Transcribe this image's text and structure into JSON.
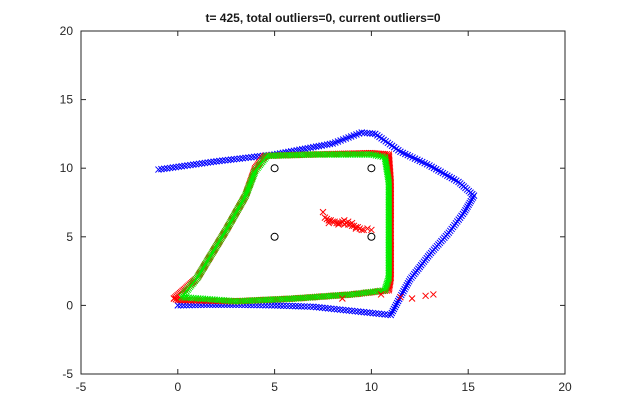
{
  "chart_data": {
    "type": "scatter",
    "title": "t= 425, total outliers=0, current outliers=0",
    "xlabel": "",
    "ylabel": "",
    "xlim": [
      -5,
      20
    ],
    "ylim": [
      -5,
      20
    ],
    "xticks": [
      -5,
      0,
      5,
      10,
      15,
      20
    ],
    "yticks": [
      -5,
      0,
      5,
      10,
      15,
      20
    ],
    "grid": false,
    "legend": null,
    "series": [
      {
        "marker": "x",
        "color": "#0000ff",
        "path": [
          [
            -1.0,
            9.9
          ],
          [
            2.0,
            10.5
          ],
          [
            5.0,
            11.0
          ],
          [
            8.0,
            11.8
          ],
          [
            9.5,
            12.6
          ],
          [
            10.2,
            12.5
          ],
          [
            11.5,
            11.2
          ],
          [
            13.0,
            10.2
          ],
          [
            14.5,
            9.0
          ],
          [
            15.3,
            8.0
          ],
          [
            14.8,
            6.8
          ],
          [
            14.0,
            5.3
          ],
          [
            13.0,
            3.7
          ],
          [
            12.0,
            1.9
          ],
          [
            11.6,
            0.9
          ],
          [
            11.0,
            -0.7
          ],
          [
            9.0,
            -0.4
          ],
          [
            7.0,
            -0.1
          ],
          [
            5.0,
            0.0
          ],
          [
            3.0,
            0.05
          ],
          [
            1.5,
            0.05
          ],
          [
            0.0,
            0.0
          ]
        ],
        "spacing": 0.15
      },
      {
        "marker": "x",
        "color": "#ff0000",
        "path": [
          [
            -0.2,
            0.5
          ],
          [
            1.0,
            2.0
          ],
          [
            2.5,
            5.5
          ],
          [
            3.5,
            8.0
          ],
          [
            4.0,
            10.0
          ],
          [
            4.5,
            10.9
          ],
          [
            7.0,
            11.0
          ],
          [
            10.0,
            11.1
          ],
          [
            10.9,
            11.0
          ],
          [
            11.0,
            9.0
          ],
          [
            11.0,
            5.0
          ],
          [
            11.0,
            2.0
          ],
          [
            10.9,
            1.1
          ],
          [
            9.0,
            0.8
          ],
          [
            6.0,
            0.5
          ],
          [
            3.0,
            0.3
          ],
          [
            0.0,
            0.4
          ],
          [
            -0.2,
            0.5
          ]
        ],
        "spacing": 0.1
      },
      {
        "marker": "x",
        "color": "#00ee00",
        "path": [
          [
            0.2,
            0.6
          ],
          [
            1.0,
            2.0
          ],
          [
            2.5,
            5.5
          ],
          [
            3.5,
            8.0
          ],
          [
            4.0,
            9.8
          ],
          [
            4.6,
            10.9
          ],
          [
            7.0,
            11.0
          ],
          [
            10.0,
            11.0
          ],
          [
            10.7,
            10.8
          ],
          [
            10.9,
            9.0
          ],
          [
            10.9,
            5.0
          ],
          [
            10.9,
            2.0
          ],
          [
            10.7,
            1.1
          ],
          [
            9.0,
            0.8
          ],
          [
            6.0,
            0.5
          ],
          [
            3.0,
            0.3
          ],
          [
            0.2,
            0.6
          ]
        ],
        "spacing": 0.12
      },
      {
        "marker": "x",
        "color": "#ff0000",
        "points": [
          [
            7.5,
            6.8
          ],
          [
            7.6,
            6.4
          ],
          [
            7.7,
            6.3
          ],
          [
            7.8,
            6.2
          ],
          [
            7.9,
            6.2
          ],
          [
            8.0,
            6.1
          ],
          [
            8.1,
            6.1
          ],
          [
            8.2,
            6.0
          ],
          [
            8.3,
            6.0
          ],
          [
            8.4,
            6.0
          ],
          [
            8.5,
            6.1
          ],
          [
            8.6,
            6.2
          ],
          [
            8.7,
            6.0
          ],
          [
            8.8,
            5.9
          ],
          [
            8.9,
            5.9
          ],
          [
            9.0,
            5.8
          ],
          [
            9.1,
            5.8
          ],
          [
            9.2,
            5.7
          ],
          [
            9.3,
            5.7
          ],
          [
            9.4,
            5.6
          ],
          [
            9.5,
            5.5
          ],
          [
            9.6,
            5.5
          ],
          [
            9.8,
            5.6
          ],
          [
            10.0,
            5.5
          ],
          [
            8.3,
            5.9
          ],
          [
            8.6,
            5.9
          ],
          [
            9.0,
            6.0
          ],
          [
            9.2,
            5.6
          ],
          [
            8.8,
            6.1
          ],
          [
            7.8,
            6.0
          ],
          [
            10.5,
            0.8
          ],
          [
            11.5,
            0.6
          ],
          [
            12.1,
            0.5
          ],
          [
            12.8,
            0.7
          ],
          [
            13.2,
            0.8
          ],
          [
            8.5,
            0.5
          ]
        ]
      }
    ],
    "landmarks": {
      "marker": "o",
      "color": "#000000",
      "points": [
        [
          5,
          10
        ],
        [
          10,
          10
        ],
        [
          5,
          5
        ],
        [
          10,
          5
        ]
      ]
    }
  }
}
